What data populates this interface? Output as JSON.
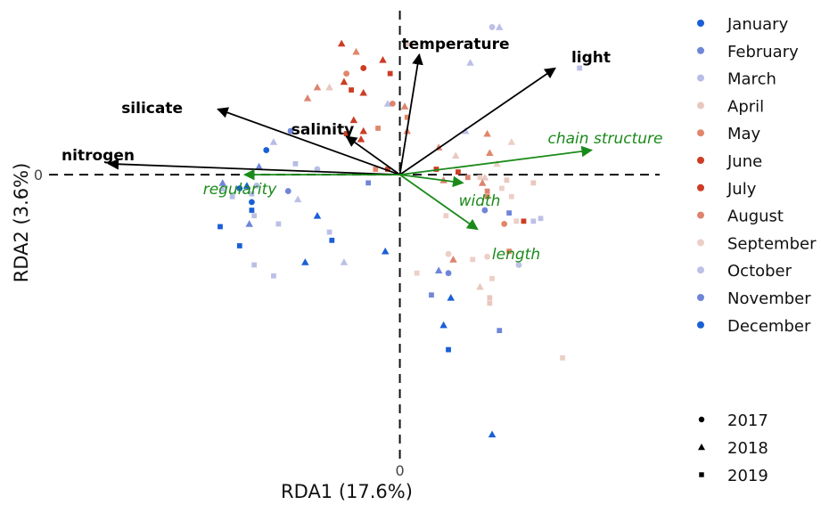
{
  "chart_data": {
    "type": "scatter",
    "xlabel": "RDA1 (17.6%)",
    "ylabel": "RDA2 (3.6%)",
    "xlim": [
      -1.5,
      1.07
    ],
    "ylim": [
      -1.13,
      0.6
    ],
    "x_ticks": [
      {
        "value": 0,
        "label": "0"
      }
    ],
    "y_ticks": [
      {
        "value": 0,
        "label": "0"
      }
    ],
    "reference_lines": "dashed lines at x = 0 and y = 0",
    "grid": false,
    "legend_position": "right",
    "month_legend": [
      {
        "label": "January",
        "color": "#1a5fd6"
      },
      {
        "label": "February",
        "color": "#6f86d8"
      },
      {
        "label": "March",
        "color": "#b6bde6"
      },
      {
        "label": "April",
        "color": "#e8c8c0"
      },
      {
        "label": "May",
        "color": "#e0876a"
      },
      {
        "label": "June",
        "color": "#cc3d24"
      },
      {
        "label": "July",
        "color": "#cc3d24"
      },
      {
        "label": "August",
        "color": "#dc8470"
      },
      {
        "label": "September",
        "color": "#eccfc6"
      },
      {
        "label": "October",
        "color": "#bcc0e6"
      },
      {
        "label": "November",
        "color": "#6f86d8"
      },
      {
        "label": "December",
        "color": "#1a5fd6"
      }
    ],
    "year_legend": [
      {
        "label": "2017",
        "shape": "circle"
      },
      {
        "label": "2018",
        "shape": "triangle"
      },
      {
        "label": "2019",
        "shape": "square"
      }
    ],
    "environment_vectors": [
      {
        "name": "temperature",
        "x": 0.08,
        "y": 0.44
      },
      {
        "name": "light",
        "x": 0.64,
        "y": 0.39
      },
      {
        "name": "silicate",
        "x": -0.75,
        "y": 0.24
      },
      {
        "name": "salinity",
        "x": -0.22,
        "y": 0.14
      },
      {
        "name": "nitrogen",
        "x": -1.2,
        "y": 0.04
      }
    ],
    "trait_vectors": [
      {
        "name": "chain structure",
        "x": 0.79,
        "y": 0.09
      },
      {
        "name": "regularity",
        "x": -0.64,
        "y": 0.0
      },
      {
        "name": "width",
        "x": 0.26,
        "y": -0.03
      },
      {
        "name": "length",
        "x": 0.32,
        "y": -0.2
      }
    ],
    "points": [
      {
        "x": 0.38,
        "y": 0.54,
        "month": "October",
        "year": "2017"
      },
      {
        "x": 0.41,
        "y": 0.54,
        "month": "October",
        "year": "2018"
      },
      {
        "x": 0.29,
        "y": 0.41,
        "month": "October",
        "year": "2018"
      },
      {
        "x": 0.74,
        "y": 0.39,
        "month": "October",
        "year": "2019"
      },
      {
        "x": 0.03,
        "y": 0.48,
        "month": "April",
        "year": "2018"
      },
      {
        "x": -0.24,
        "y": 0.48,
        "month": "June",
        "year": "2018"
      },
      {
        "x": -0.18,
        "y": 0.45,
        "month": "May",
        "year": "2018"
      },
      {
        "x": -0.07,
        "y": 0.42,
        "month": "June",
        "year": "2018"
      },
      {
        "x": -0.15,
        "y": 0.39,
        "month": "June",
        "year": "2017"
      },
      {
        "x": -0.22,
        "y": 0.37,
        "month": "May",
        "year": "2017"
      },
      {
        "x": -0.04,
        "y": 0.37,
        "month": "June",
        "year": "2019"
      },
      {
        "x": -0.23,
        "y": 0.34,
        "month": "June",
        "year": "2018"
      },
      {
        "x": -0.34,
        "y": 0.32,
        "month": "August",
        "year": "2018"
      },
      {
        "x": -0.29,
        "y": 0.32,
        "month": "April",
        "year": "2018"
      },
      {
        "x": -0.2,
        "y": 0.31,
        "month": "June",
        "year": "2019"
      },
      {
        "x": -0.15,
        "y": 0.3,
        "month": "June",
        "year": "2018"
      },
      {
        "x": -0.38,
        "y": 0.28,
        "month": "August",
        "year": "2018"
      },
      {
        "x": -0.05,
        "y": 0.26,
        "month": "October",
        "year": "2018"
      },
      {
        "x": -0.03,
        "y": 0.26,
        "month": "August",
        "year": "2017"
      },
      {
        "x": 0.02,
        "y": 0.25,
        "month": "August",
        "year": "2018"
      },
      {
        "x": 0.03,
        "y": 0.21,
        "month": "May",
        "year": "2019"
      },
      {
        "x": -0.19,
        "y": 0.2,
        "month": "June",
        "year": "2018"
      },
      {
        "x": -0.15,
        "y": 0.16,
        "month": "June",
        "year": "2018"
      },
      {
        "x": -0.09,
        "y": 0.17,
        "month": "May",
        "year": "2019"
      },
      {
        "x": -0.22,
        "y": 0.15,
        "month": "June",
        "year": "2019"
      },
      {
        "x": -0.16,
        "y": 0.13,
        "month": "June",
        "year": "2018"
      },
      {
        "x": 0.03,
        "y": 0.16,
        "month": "May",
        "year": "2018"
      },
      {
        "x": -0.45,
        "y": 0.16,
        "month": "February",
        "year": "2017"
      },
      {
        "x": -0.52,
        "y": 0.12,
        "month": "March",
        "year": "2018"
      },
      {
        "x": -0.55,
        "y": 0.09,
        "month": "December",
        "year": "2017"
      },
      {
        "x": -0.58,
        "y": 0.03,
        "month": "February",
        "year": "2018"
      },
      {
        "x": -0.43,
        "y": 0.04,
        "month": "March",
        "year": "2019"
      },
      {
        "x": -0.34,
        "y": 0.02,
        "month": "March",
        "year": "2017"
      },
      {
        "x": 0.16,
        "y": 0.1,
        "month": "May",
        "year": "2018"
      },
      {
        "x": 0.23,
        "y": 0.07,
        "month": "April",
        "year": "2018"
      },
      {
        "x": 0.37,
        "y": 0.08,
        "month": "May",
        "year": "2018"
      },
      {
        "x": 0.46,
        "y": 0.12,
        "month": "September",
        "year": "2018"
      },
      {
        "x": 0.36,
        "y": 0.15,
        "month": "May",
        "year": "2018"
      },
      {
        "x": 0.27,
        "y": 0.16,
        "month": "October",
        "year": "2018"
      },
      {
        "x": 0.4,
        "y": 0.04,
        "month": "September",
        "year": "2018"
      },
      {
        "x": -0.1,
        "y": 0.02,
        "month": "May",
        "year": "2019"
      },
      {
        "x": -0.05,
        "y": 0.02,
        "month": "June",
        "year": "2019"
      },
      {
        "x": 0.15,
        "y": 0.02,
        "month": "June",
        "year": "2019"
      },
      {
        "x": 0.24,
        "y": 0.01,
        "month": "June",
        "year": "2019"
      },
      {
        "x": 0.28,
        "y": -0.01,
        "month": "August",
        "year": "2019"
      },
      {
        "x": 0.33,
        "y": -0.01,
        "month": "September",
        "year": "2019"
      },
      {
        "x": 0.35,
        "y": -0.01,
        "month": "April",
        "year": "2018"
      },
      {
        "x": 0.18,
        "y": -0.02,
        "month": "August",
        "year": "2018"
      },
      {
        "x": 0.34,
        "y": -0.03,
        "month": "August",
        "year": "2018"
      },
      {
        "x": 0.44,
        "y": -0.02,
        "month": "April",
        "year": "2019"
      },
      {
        "x": 0.55,
        "y": -0.03,
        "month": "April",
        "year": "2019"
      },
      {
        "x": 0.36,
        "y": -0.06,
        "month": "August",
        "year": "2019"
      },
      {
        "x": 0.42,
        "y": -0.05,
        "month": "September",
        "year": "2019"
      },
      {
        "x": 0.46,
        "y": -0.08,
        "month": "September",
        "year": "2019"
      },
      {
        "x": 0.36,
        "y": -0.08,
        "month": "May",
        "year": "2019"
      },
      {
        "x": 0.35,
        "y": -0.13,
        "month": "February",
        "year": "2017"
      },
      {
        "x": 0.45,
        "y": -0.14,
        "month": "February",
        "year": "2019"
      },
      {
        "x": 0.19,
        "y": -0.15,
        "month": "September",
        "year": "2019"
      },
      {
        "x": 0.48,
        "y": -0.17,
        "month": "September",
        "year": "2019"
      },
      {
        "x": 0.43,
        "y": -0.18,
        "month": "May",
        "year": "2017"
      },
      {
        "x": 0.51,
        "y": -0.17,
        "month": "June",
        "year": "2019"
      },
      {
        "x": 0.55,
        "y": -0.17,
        "month": "October",
        "year": "2019"
      },
      {
        "x": 0.58,
        "y": -0.16,
        "month": "October",
        "year": "2019"
      },
      {
        "x": 0.36,
        "y": -0.3,
        "month": "September",
        "year": "2017"
      },
      {
        "x": 0.45,
        "y": -0.28,
        "month": "May",
        "year": "2019"
      },
      {
        "x": 0.2,
        "y": -0.29,
        "month": "September",
        "year": "2017"
      },
      {
        "x": 0.22,
        "y": -0.31,
        "month": "August",
        "year": "2018"
      },
      {
        "x": 0.3,
        "y": -0.31,
        "month": "September",
        "year": "2019"
      },
      {
        "x": 0.2,
        "y": -0.36,
        "month": "February",
        "year": "2017"
      },
      {
        "x": 0.49,
        "y": -0.33,
        "month": "October",
        "year": "2017"
      },
      {
        "x": 0.07,
        "y": -0.36,
        "month": "September",
        "year": "2019"
      },
      {
        "x": 0.16,
        "y": -0.35,
        "month": "February",
        "year": "2018"
      },
      {
        "x": 0.38,
        "y": -0.38,
        "month": "September",
        "year": "2019"
      },
      {
        "x": 0.33,
        "y": -0.41,
        "month": "April",
        "year": "2018"
      },
      {
        "x": 0.13,
        "y": -0.44,
        "month": "February",
        "year": "2019"
      },
      {
        "x": 0.21,
        "y": -0.45,
        "month": "December",
        "year": "2018"
      },
      {
        "x": 0.37,
        "y": -0.45,
        "month": "April",
        "year": "2019"
      },
      {
        "x": 0.37,
        "y": -0.47,
        "month": "April",
        "year": "2019"
      },
      {
        "x": 0.18,
        "y": -0.55,
        "month": "December",
        "year": "2018"
      },
      {
        "x": 0.41,
        "y": -0.57,
        "month": "February",
        "year": "2019"
      },
      {
        "x": 0.2,
        "y": -0.64,
        "month": "December",
        "year": "2019"
      },
      {
        "x": 0.67,
        "y": -0.67,
        "month": "September",
        "year": "2019"
      },
      {
        "x": 0.38,
        "y": -0.95,
        "month": "December",
        "year": "2018"
      },
      {
        "x": -0.13,
        "y": -0.03,
        "month": "February",
        "year": "2019"
      },
      {
        "x": -0.42,
        "y": -0.09,
        "month": "October",
        "year": "2018"
      },
      {
        "x": -0.46,
        "y": -0.06,
        "month": "February",
        "year": "2017"
      },
      {
        "x": -0.63,
        "y": -0.04,
        "month": "December",
        "year": "2018"
      },
      {
        "x": -0.59,
        "y": -0.04,
        "month": "March",
        "year": "2017"
      },
      {
        "x": -0.66,
        "y": -0.05,
        "month": "January",
        "year": "2017"
      },
      {
        "x": -0.69,
        "y": -0.08,
        "month": "March",
        "year": "2019"
      },
      {
        "x": -0.73,
        "y": -0.05,
        "month": "March",
        "year": "2018"
      },
      {
        "x": -0.61,
        "y": -0.07,
        "month": "March",
        "year": "2019"
      },
      {
        "x": -0.61,
        "y": -0.1,
        "month": "December",
        "year": "2017"
      },
      {
        "x": -0.73,
        "y": -0.03,
        "month": "February",
        "year": "2018"
      },
      {
        "x": -0.61,
        "y": -0.13,
        "month": "December",
        "year": "2019"
      },
      {
        "x": -0.6,
        "y": -0.15,
        "month": "October",
        "year": "2019"
      },
      {
        "x": -0.62,
        "y": -0.18,
        "month": "February",
        "year": "2018"
      },
      {
        "x": -0.74,
        "y": -0.19,
        "month": "December",
        "year": "2019"
      },
      {
        "x": -0.34,
        "y": -0.15,
        "month": "December",
        "year": "2018"
      },
      {
        "x": -0.29,
        "y": -0.21,
        "month": "October",
        "year": "2019"
      },
      {
        "x": -0.28,
        "y": -0.24,
        "month": "December",
        "year": "2019"
      },
      {
        "x": -0.5,
        "y": -0.18,
        "month": "October",
        "year": "2019"
      },
      {
        "x": -0.66,
        "y": -0.26,
        "month": "December",
        "year": "2019"
      },
      {
        "x": -0.6,
        "y": -0.33,
        "month": "October",
        "year": "2019"
      },
      {
        "x": -0.52,
        "y": -0.37,
        "month": "October",
        "year": "2019"
      },
      {
        "x": -0.39,
        "y": -0.32,
        "month": "December",
        "year": "2018"
      },
      {
        "x": -0.23,
        "y": -0.32,
        "month": "October",
        "year": "2018"
      },
      {
        "x": -0.06,
        "y": -0.28,
        "month": "December",
        "year": "2018"
      }
    ]
  }
}
